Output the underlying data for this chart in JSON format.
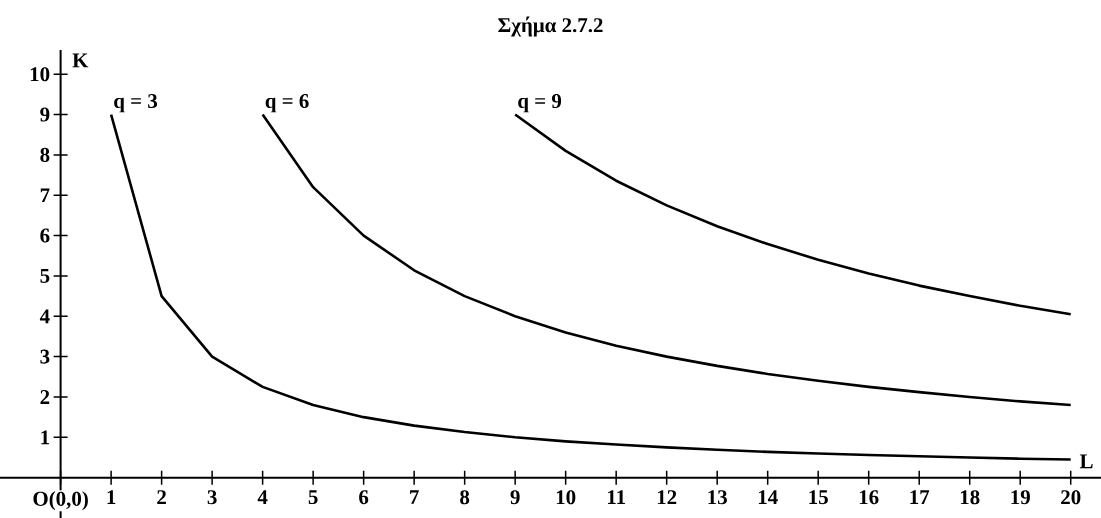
{
  "chart_data": {
    "type": "line",
    "title": "Σχήμα 2.7.2",
    "xlabel": "L",
    "ylabel": "K",
    "xlim": [
      -1.2,
      20.6
    ],
    "ylim": [
      -1,
      10.6
    ],
    "xticks": [
      {
        "value": 0,
        "label": "O(0,0)"
      },
      1,
      2,
      3,
      4,
      5,
      6,
      7,
      8,
      9,
      10,
      11,
      12,
      13,
      14,
      15,
      16,
      17,
      18,
      19,
      20
    ],
    "yticks": [
      1,
      2,
      3,
      4,
      5,
      6,
      7,
      8,
      9,
      10
    ],
    "line_style": "solid",
    "marker": "none",
    "series": [
      {
        "name": "q = 3",
        "color": "#000000",
        "x": [
          1,
          2,
          3,
          4,
          5,
          6,
          7,
          8,
          9,
          10,
          11,
          12,
          13,
          14,
          15,
          16,
          17,
          18,
          19,
          20
        ],
        "values": [
          9,
          4.5,
          3,
          2.25,
          1.8,
          1.5,
          1.29,
          1.13,
          1,
          0.9,
          0.82,
          0.75,
          0.69,
          0.64,
          0.6,
          0.56,
          0.53,
          0.5,
          0.47,
          0.45
        ]
      },
      {
        "name": "q = 6",
        "color": "#000000",
        "x": [
          4,
          5,
          6,
          7,
          8,
          9,
          10,
          11,
          12,
          13,
          14,
          15,
          16,
          17,
          18,
          19,
          20
        ],
        "values": [
          9,
          7.2,
          6,
          5.14,
          4.5,
          4,
          3.6,
          3.27,
          3,
          2.77,
          2.57,
          2.4,
          2.25,
          2.12,
          2,
          1.89,
          1.8
        ]
      },
      {
        "name": "q = 9",
        "color": "#000000",
        "x": [
          9,
          10,
          11,
          12,
          13,
          14,
          15,
          16,
          17,
          18,
          19,
          20
        ],
        "values": [
          9,
          8.1,
          7.36,
          6.75,
          6.23,
          5.79,
          5.4,
          5.06,
          4.76,
          4.5,
          4.26,
          4.05
        ]
      }
    ]
  }
}
